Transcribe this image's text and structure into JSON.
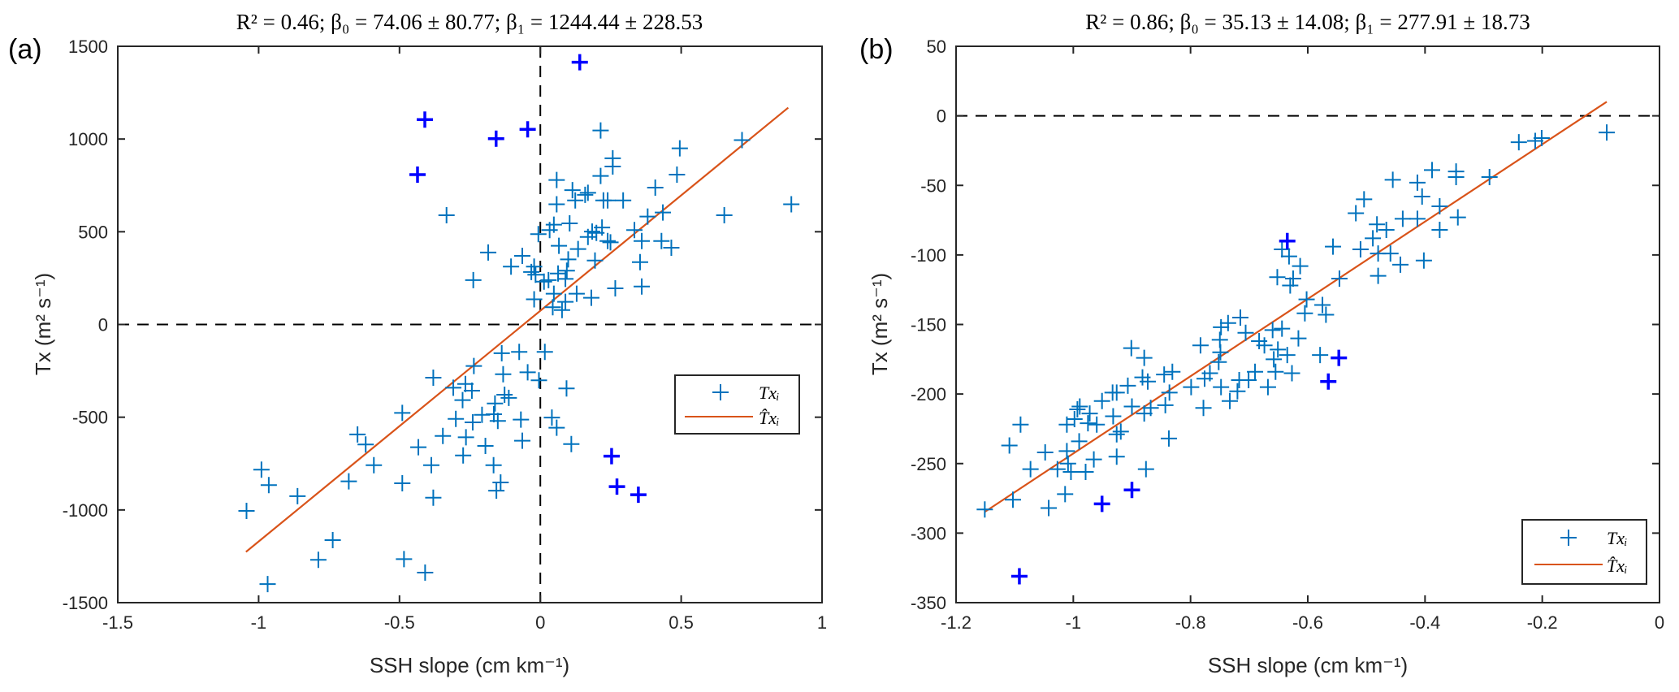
{
  "chart_data": [
    {
      "type": "scatter",
      "panel_label": "(a)",
      "title": "R² = 0.46; β₀ = 74.06 ± 80.77; β₁ = 1244.44 ± 228.53",
      "xlabel": "SSH slope (cm km⁻¹)",
      "ylabel": "Tx (m² s⁻¹)",
      "xlim": [
        -1.5,
        1
      ],
      "ylim": [
        -1500,
        1500
      ],
      "xticks": [
        -1.5,
        -1,
        -0.5,
        0,
        0.5,
        1
      ],
      "xtick_labels": [
        "-1.5",
        "-1",
        "-0.5",
        "0",
        "0.5",
        "1"
      ],
      "yticks": [
        -1500,
        -1000,
        -500,
        0,
        500,
        1000,
        1500
      ],
      "ytick_labels": [
        "-1500",
        "-1000",
        "-500",
        "0",
        "500",
        "1000",
        "1500"
      ],
      "grid": false,
      "reference_lines": {
        "x": 0,
        "y": 0,
        "style": "dashed"
      },
      "legend": {
        "placement": "center-right",
        "entries": [
          "Txᵢ",
          "T̂xᵢ"
        ]
      },
      "colors": {
        "points": "#0072BD",
        "outliers": "#0000FF",
        "fit": "#D95319"
      },
      "fit": {
        "intercept": 74.06,
        "slope": 1244.44,
        "x_range": [
          -1.045,
          0.88
        ]
      },
      "series": [
        {
          "name": "Txᵢ",
          "points": [
            [
              0.214,
              1046
            ],
            [
              0.716,
              994
            ],
            [
              0.495,
              950
            ],
            [
              0.257,
              896
            ],
            [
              0.257,
              852
            ],
            [
              0.214,
              801
            ],
            [
              0.485,
              808
            ],
            [
              0.058,
              779
            ],
            [
              0.408,
              738
            ],
            [
              0.114,
              724
            ],
            [
              0.169,
              710
            ],
            [
              0.159,
              699
            ],
            [
              0.124,
              669
            ],
            [
              0.224,
              669
            ],
            [
              0.239,
              669
            ],
            [
              0.294,
              669
            ],
            [
              0.058,
              648
            ],
            [
              0.891,
              648
            ],
            [
              -0.333,
              589
            ],
            [
              0.653,
              589
            ],
            [
              0.435,
              604
            ],
            [
              0.381,
              582
            ],
            [
              0.104,
              545
            ],
            [
              0.048,
              538
            ],
            [
              0.033,
              509
            ],
            [
              -0.007,
              487
            ],
            [
              0.184,
              501
            ],
            [
              0.219,
              523
            ],
            [
              0.199,
              494
            ],
            [
              0.334,
              509
            ],
            [
              0.169,
              472
            ],
            [
              0.239,
              450
            ],
            [
              0.249,
              443
            ],
            [
              0.36,
              450
            ],
            [
              0.43,
              450
            ],
            [
              0.465,
              414
            ],
            [
              0.066,
              424
            ],
            [
              0.134,
              407
            ],
            [
              -0.185,
              388
            ],
            [
              -0.064,
              370
            ],
            [
              0.099,
              351
            ],
            [
              0.194,
              345
            ],
            [
              0.354,
              336
            ],
            [
              -0.104,
              312
            ],
            [
              -0.022,
              312
            ],
            [
              -0.032,
              283
            ],
            [
              -0.017,
              268
            ],
            [
              0.094,
              290
            ],
            [
              0.063,
              275
            ],
            [
              0.089,
              246
            ],
            [
              0.029,
              239
            ],
            [
              0.013,
              231
            ],
            [
              -0.238,
              239
            ],
            [
              0.266,
              195
            ],
            [
              0.36,
              205
            ],
            [
              0.048,
              166
            ],
            [
              0.129,
              166
            ],
            [
              0.181,
              144
            ],
            [
              -0.022,
              136
            ],
            [
              0.089,
              122
            ],
            [
              0.044,
              93
            ],
            [
              0.077,
              78
            ],
            [
              -0.137,
              -155
            ],
            [
              -0.075,
              -148
            ],
            [
              0.016,
              -148
            ],
            [
              -0.236,
              -224
            ],
            [
              -0.132,
              -268
            ],
            [
              -0.045,
              -258
            ],
            [
              -0.005,
              -301
            ],
            [
              0.093,
              -345
            ],
            [
              -0.38,
              -287
            ],
            [
              -0.309,
              -341
            ],
            [
              -0.266,
              -321
            ],
            [
              -0.243,
              -357
            ],
            [
              -0.276,
              -408
            ],
            [
              -0.127,
              -379
            ],
            [
              -0.112,
              -396
            ],
            [
              -0.161,
              -426
            ],
            [
              -0.49,
              -477
            ],
            [
              -0.3,
              -509
            ],
            [
              -0.24,
              -528
            ],
            [
              -0.207,
              -487
            ],
            [
              -0.165,
              -484
            ],
            [
              -0.151,
              -520
            ],
            [
              -0.069,
              -513
            ],
            [
              0.041,
              -502
            ],
            [
              0.058,
              -557
            ],
            [
              0.11,
              -645
            ],
            [
              -0.649,
              -593
            ],
            [
              -0.62,
              -647
            ],
            [
              -0.346,
              -601
            ],
            [
              -0.264,
              -608
            ],
            [
              -0.064,
              -627
            ],
            [
              -0.433,
              -662
            ],
            [
              -0.195,
              -655
            ],
            [
              -0.274,
              -706
            ],
            [
              -0.591,
              -759
            ],
            [
              -0.387,
              -759
            ],
            [
              -0.166,
              -759
            ],
            [
              -0.99,
              -783
            ],
            [
              -0.964,
              -866
            ],
            [
              -0.68,
              -846
            ],
            [
              -0.49,
              -856
            ],
            [
              -0.141,
              -852
            ],
            [
              -0.156,
              -896
            ],
            [
              -0.862,
              -926
            ],
            [
              -0.38,
              -934
            ],
            [
              -1.043,
              -1005
            ],
            [
              -0.737,
              -1163
            ],
            [
              -0.788,
              -1269
            ],
            [
              -0.484,
              -1265
            ],
            [
              -0.409,
              -1338
            ],
            [
              -0.968,
              -1400
            ]
          ]
        },
        {
          "name": "outliers",
          "points": [
            [
              0.14,
              1414
            ],
            [
              -0.41,
              1105
            ],
            [
              -0.157,
              1002
            ],
            [
              -0.045,
              1052
            ],
            [
              -0.436,
              808
            ],
            [
              0.253,
              -710
            ],
            [
              0.272,
              -874
            ],
            [
              0.348,
              -918
            ]
          ]
        }
      ]
    },
    {
      "type": "scatter",
      "panel_label": "(b)",
      "title": "R² = 0.86; β₀ = 35.13 ± 14.08; β₁ = 277.91 ± 18.73",
      "xlabel": "SSH slope (cm km⁻¹)",
      "ylabel": "Tx (m² s⁻¹)",
      "xlim": [
        -1.2,
        0
      ],
      "ylim": [
        -350,
        50
      ],
      "xticks": [
        -1.2,
        -1,
        -0.8,
        -0.6,
        -0.4,
        -0.2,
        0
      ],
      "xtick_labels": [
        "-1.2",
        "-1",
        "-0.8",
        "-0.6",
        "-0.4",
        "-0.2",
        "0"
      ],
      "yticks": [
        -350,
        -300,
        -250,
        -200,
        -150,
        -100,
        -50,
        0,
        50
      ],
      "ytick_labels": [
        "-350",
        "-300",
        "-250",
        "-200",
        "-150",
        "-100",
        "-50",
        "0",
        "50"
      ],
      "grid": false,
      "reference_lines": {
        "y": 0,
        "style": "dashed"
      },
      "legend": {
        "placement": "bottom-right",
        "entries": [
          "Txᵢ",
          "T̂xᵢ"
        ]
      },
      "colors": {
        "points": "#0072BD",
        "outliers": "#0000FF",
        "fit": "#D95319"
      },
      "fit": {
        "intercept": 35.13,
        "slope": 277.91,
        "x_range": [
          -1.151,
          -0.09
        ]
      },
      "series": [
        {
          "name": "Txᵢ",
          "points": [
            [
              -1.151,
              -283
            ],
            [
              -1.103,
              -276
            ],
            [
              -1.109,
              -237
            ],
            [
              -1.09,
              -222
            ],
            [
              -1.073,
              -254
            ],
            [
              -1.048,
              -242
            ],
            [
              -1.042,
              -282
            ],
            [
              -1.014,
              -272
            ],
            [
              -1.027,
              -254
            ],
            [
              -1.009,
              -250
            ],
            [
              -1.004,
              -256
            ],
            [
              -1.011,
              -241
            ],
            [
              -1.011,
              -222
            ],
            [
              -0.998,
              -218
            ],
            [
              -0.99,
              -234
            ],
            [
              -0.989,
              -209
            ],
            [
              -0.993,
              -211
            ],
            [
              -0.979,
              -256
            ],
            [
              -0.965,
              -247
            ],
            [
              -0.972,
              -214
            ],
            [
              -0.975,
              -221
            ],
            [
              -0.96,
              -222
            ],
            [
              -0.951,
              -205
            ],
            [
              -0.933,
              -199
            ],
            [
              -0.926,
              -199
            ],
            [
              -0.907,
              -194
            ],
            [
              -0.932,
              -216
            ],
            [
              -0.926,
              -229
            ],
            [
              -0.919,
              -227
            ],
            [
              -0.926,
              -245
            ],
            [
              -0.9,
              -209
            ],
            [
              -0.901,
              -167
            ],
            [
              -0.879,
              -174
            ],
            [
              -0.882,
              -188
            ],
            [
              -0.873,
              -191
            ],
            [
              -0.879,
              -214
            ],
            [
              -0.868,
              -210
            ],
            [
              -0.876,
              -254
            ],
            [
              -0.845,
              -186
            ],
            [
              -0.831,
              -184
            ],
            [
              -0.843,
              -208
            ],
            [
              -0.836,
              -199
            ],
            [
              -0.837,
              -232
            ],
            [
              -0.799,
              -195
            ],
            [
              -0.778,
              -210
            ],
            [
              -0.783,
              -165
            ],
            [
              -0.776,
              -189
            ],
            [
              -0.767,
              -185
            ],
            [
              -0.752,
              -177
            ],
            [
              -0.75,
              -161
            ],
            [
              -0.749,
              -170
            ],
            [
              -0.748,
              -195
            ],
            [
              -0.748,
              -152
            ],
            [
              -0.736,
              -149
            ],
            [
              -0.715,
              -145
            ],
            [
              -0.733,
              -205
            ],
            [
              -0.72,
              -198
            ],
            [
              -0.717,
              -190
            ],
            [
              -0.706,
              -156
            ],
            [
              -0.701,
              -190
            ],
            [
              -0.69,
              -184
            ],
            [
              -0.683,
              -162
            ],
            [
              -0.674,
              -165
            ],
            [
              -0.668,
              -195
            ],
            [
              -0.66,
              -154
            ],
            [
              -0.655,
              -184
            ],
            [
              -0.651,
              -168
            ],
            [
              -0.658,
              -175
            ],
            [
              -0.644,
              -153
            ],
            [
              -0.635,
              -172
            ],
            [
              -0.627,
              -185
            ],
            [
              -0.616,
              -160
            ],
            [
              -0.579,
              -172
            ],
            [
              -0.644,
              -96
            ],
            [
              -0.632,
              -101
            ],
            [
              -0.613,
              -108
            ],
            [
              -0.652,
              -116
            ],
            [
              -0.625,
              -117
            ],
            [
              -0.63,
              -122
            ],
            [
              -0.602,
              -132
            ],
            [
              -0.575,
              -136
            ],
            [
              -0.569,
              -143
            ],
            [
              -0.605,
              -142
            ],
            [
              -0.557,
              -94
            ],
            [
              -0.546,
              -117
            ],
            [
              -0.51,
              -96
            ],
            [
              -0.48,
              -99
            ],
            [
              -0.459,
              -99
            ],
            [
              -0.442,
              -107
            ],
            [
              -0.402,
              -104
            ],
            [
              -0.48,
              -115
            ],
            [
              -0.489,
              -88
            ],
            [
              -0.482,
              -78
            ],
            [
              -0.466,
              -82
            ],
            [
              -0.438,
              -74
            ],
            [
              -0.413,
              -74
            ],
            [
              -0.375,
              -82
            ],
            [
              -0.344,
              -73
            ],
            [
              -0.375,
              -65
            ],
            [
              -0.405,
              -58
            ],
            [
              -0.504,
              -60
            ],
            [
              -0.518,
              -70
            ],
            [
              -0.455,
              -46
            ],
            [
              -0.413,
              -48
            ],
            [
              -0.388,
              -39
            ],
            [
              -0.347,
              -40
            ],
            [
              -0.347,
              -44
            ],
            [
              -0.29,
              -44
            ],
            [
              -0.24,
              -19
            ],
            [
              -0.212,
              -18
            ],
            [
              -0.201,
              -16
            ],
            [
              -0.09,
              -12
            ]
          ]
        },
        {
          "name": "outliers",
          "points": [
            [
              -1.092,
              -331
            ],
            [
              -0.951,
              -279
            ],
            [
              -0.9,
              -269
            ],
            [
              -0.635,
              -90
            ],
            [
              -0.565,
              -191
            ],
            [
              -0.547,
              -174
            ]
          ]
        }
      ]
    }
  ]
}
